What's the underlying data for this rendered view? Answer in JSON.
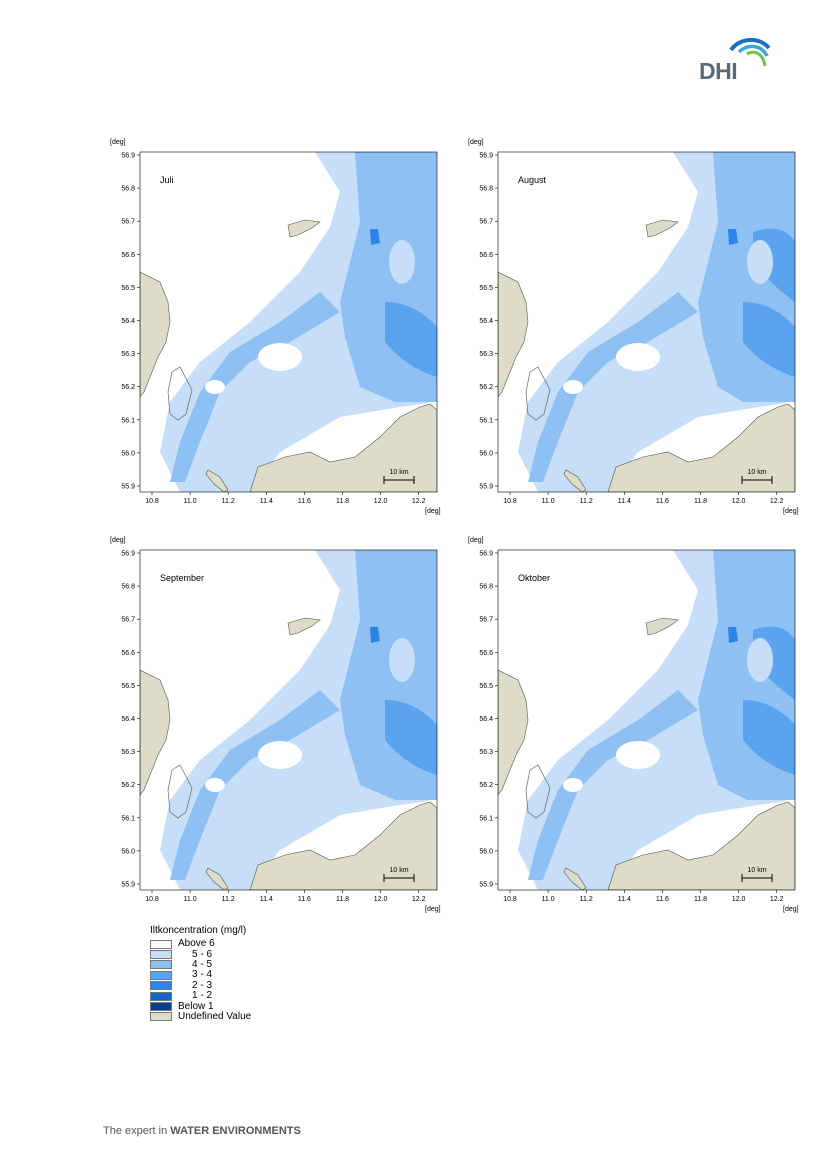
{
  "header": {
    "logo_text": "DHI"
  },
  "map_data": {
    "x_unit": "[deg]",
    "y_unit": "[deg]",
    "x_ticks": [
      "10.8",
      "11.0",
      "11.2",
      "11.4",
      "11.6",
      "11.8",
      "12.0",
      "12.2"
    ],
    "y_ticks": [
      "56.9",
      "56.8",
      "56.7",
      "56.6",
      "56.5",
      "56.4",
      "56.3",
      "56.2",
      "56.1",
      "56.0",
      "55.9"
    ],
    "scale_bar": "10 km",
    "panels": [
      {
        "month": "Juli"
      },
      {
        "month": "August"
      },
      {
        "month": "September"
      },
      {
        "month": "Oktober"
      }
    ]
  },
  "legend": {
    "title": "Iltkoncentration (mg/l)",
    "items": [
      {
        "label": "Above 6",
        "color": "#ffffff"
      },
      {
        "label": "5 - 6",
        "color": "#c6def7"
      },
      {
        "label": "4 - 5",
        "color": "#8fc0f3"
      },
      {
        "label": "3 - 4",
        "color": "#5aa3ee"
      },
      {
        "label": "2 - 3",
        "color": "#2c84e6"
      },
      {
        "label": "1 - 2",
        "color": "#1565c8"
      },
      {
        "label": "Below 1",
        "color": "#0a3f8c"
      },
      {
        "label": "Undefined Value",
        "color": "#dcdcc8"
      }
    ]
  },
  "footer": {
    "prefix": "The expert in ",
    "emphasis": "WATER ENVIRONMENTS"
  }
}
